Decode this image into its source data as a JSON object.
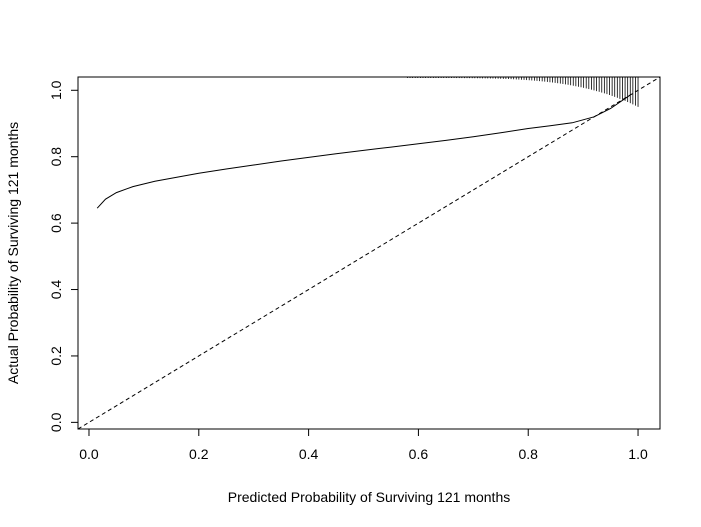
{
  "chart_data": {
    "type": "line",
    "title": "",
    "xlabel": "Predicted Probability of Surviving 121 months",
    "ylabel": "Actual Probability of Surviving 121 months",
    "xlim": [
      -0.02,
      1.04
    ],
    "ylim": [
      -0.02,
      1.04
    ],
    "x_ticks": [
      0.0,
      0.2,
      0.4,
      0.6,
      0.8,
      1.0
    ],
    "x_tick_labels": [
      "0.0",
      "0.2",
      "0.4",
      "0.6",
      "0.8",
      "1.0"
    ],
    "y_ticks": [
      0.0,
      0.2,
      0.4,
      0.6,
      0.8,
      1.0
    ],
    "y_tick_labels": [
      "0.0",
      "0.2",
      "0.4",
      "0.6",
      "0.8",
      "1.0"
    ],
    "grid": false,
    "legend": "none",
    "series": [
      {
        "style": "solid",
        "x": [
          0.015,
          0.03,
          0.05,
          0.08,
          0.12,
          0.16,
          0.2,
          0.25,
          0.3,
          0.35,
          0.4,
          0.45,
          0.5,
          0.55,
          0.6,
          0.65,
          0.7,
          0.75,
          0.8,
          0.84,
          0.88,
          0.92,
          0.95,
          0.985
        ],
        "y": [
          0.645,
          0.672,
          0.692,
          0.71,
          0.726,
          0.738,
          0.75,
          0.763,
          0.775,
          0.787,
          0.798,
          0.809,
          0.819,
          0.829,
          0.839,
          0.849,
          0.86,
          0.872,
          0.885,
          0.893,
          0.902,
          0.92,
          0.945,
          0.985
        ]
      },
      {
        "style": "dashed",
        "x": [
          -0.02,
          1.04
        ],
        "y": [
          -0.02,
          1.04
        ]
      }
    ],
    "rug": {
      "position": "top",
      "x_start": 0.58,
      "x_end": 1.0,
      "min_len": 0.003,
      "max_len": 0.09
    }
  }
}
